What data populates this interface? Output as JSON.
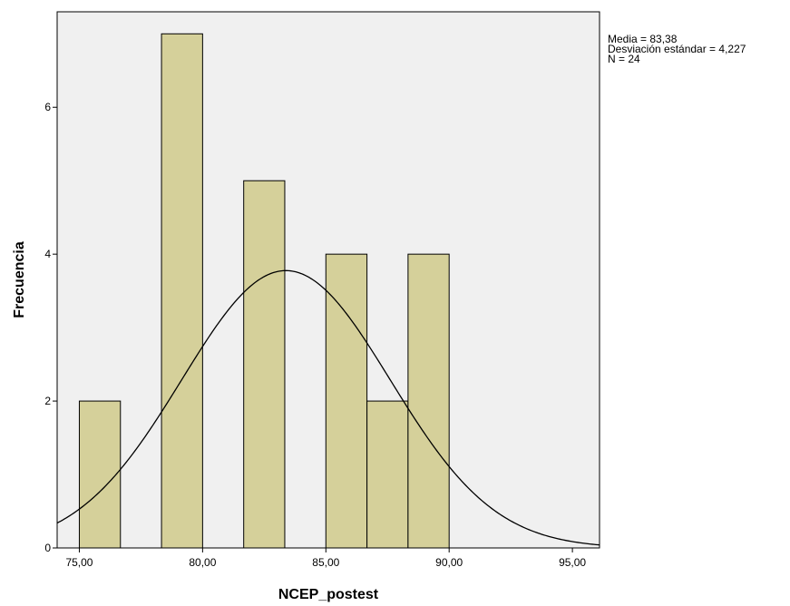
{
  "chart_data": {
    "type": "bar",
    "subtype": "histogram",
    "xlabel": "NCEP_postest",
    "ylabel": "Frecuencia",
    "xlim": [
      74.1,
      96.1
    ],
    "ylim": [
      0,
      7.3
    ],
    "x_ticks": [
      {
        "value": 75,
        "label": "75,00"
      },
      {
        "value": 80,
        "label": "80,00"
      },
      {
        "value": 85,
        "label": "85,00"
      },
      {
        "value": 90,
        "label": "90,00"
      },
      {
        "value": 95,
        "label": "95,00"
      }
    ],
    "y_ticks": [
      {
        "value": 0,
        "label": "0"
      },
      {
        "value": 2,
        "label": "2"
      },
      {
        "value": 4,
        "label": "4"
      },
      {
        "value": 6,
        "label": "6"
      }
    ],
    "bin_width": 1.667,
    "bins": [
      {
        "x0": 75.0,
        "x1": 76.667,
        "count": 2
      },
      {
        "x0": 78.333,
        "x1": 80.0,
        "count": 7
      },
      {
        "x0": 81.667,
        "x1": 83.333,
        "count": 5
      },
      {
        "x0": 85.0,
        "x1": 86.667,
        "count": 4
      },
      {
        "x0": 86.667,
        "x1": 88.333,
        "count": 2
      },
      {
        "x0": 88.333,
        "x1": 90.0,
        "count": 4
      }
    ],
    "normal_curve": {
      "mean": 83.38,
      "sd": 4.227,
      "n": 24
    },
    "bar_color": "#d5d09a",
    "plot_background": "#f0f0f0",
    "grid": false
  },
  "stats_box": {
    "mean_line": "Media = 83,38",
    "sd_line": "Desviación estándar = 4,227",
    "n_line": "N = 24"
  }
}
